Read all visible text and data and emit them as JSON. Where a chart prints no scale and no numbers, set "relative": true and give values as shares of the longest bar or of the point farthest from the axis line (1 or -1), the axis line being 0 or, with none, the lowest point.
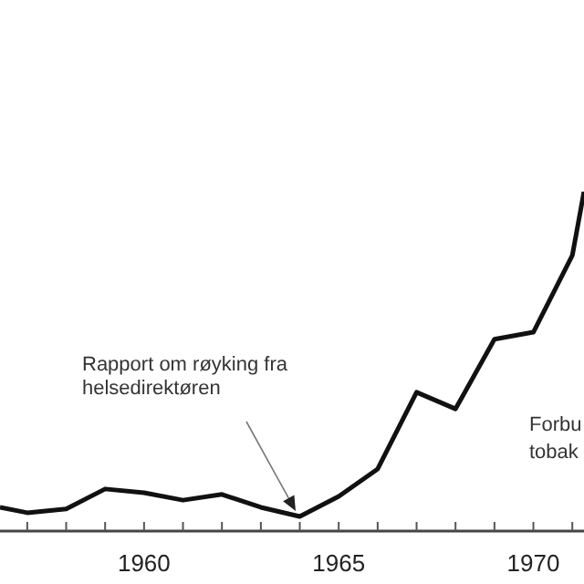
{
  "chart_data": {
    "type": "line",
    "relative": true,
    "x": [
      1956.3,
      1957,
      1958,
      1959,
      1960,
      1961,
      1962,
      1963,
      1964,
      1965,
      1966,
      1967,
      1968,
      1969,
      1970,
      1971,
      1971.3
    ],
    "values": [
      0.07,
      0.054,
      0.065,
      0.124,
      0.113,
      0.091,
      0.108,
      0.07,
      0.043,
      0.102,
      0.183,
      0.409,
      0.36,
      0.565,
      0.586,
      0.812,
      1
    ],
    "color": "#111111",
    "marker": "none",
    "line_style": "solid",
    "xlim": [
      1956.3,
      1971.3
    ],
    "xticks": [
      {
        "value": 1957,
        "label": null
      },
      {
        "value": 1958,
        "label": null
      },
      {
        "value": 1959,
        "label": null
      },
      1960,
      {
        "value": 1961,
        "label": null
      },
      {
        "value": 1962,
        "label": null
      },
      {
        "value": 1963,
        "label": null
      },
      {
        "value": 1964,
        "label": null
      },
      1965,
      {
        "value": 1966,
        "label": null
      },
      {
        "value": 1967,
        "label": null
      },
      {
        "value": 1968,
        "label": null
      },
      {
        "value": 1969,
        "label": null
      },
      1970,
      {
        "value": 1971,
        "label": null
      }
    ],
    "annotations": [
      "Rapport om røyking fra helsedirektøren",
      "Forbu tobak"
    ]
  }
}
